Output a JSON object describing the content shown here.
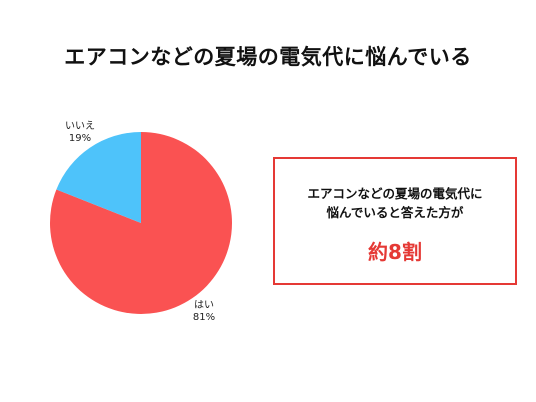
{
  "title": "エアコンなどの夏場の電気代に悩んでいる",
  "chart_data": {
    "type": "pie",
    "slices": [
      {
        "label": "はい",
        "value": 81,
        "percent_text": "81%",
        "color": "#fa5252"
      },
      {
        "label": "いいえ",
        "value": 19,
        "percent_text": "19%",
        "color": "#4ec3fa"
      }
    ]
  },
  "callout": {
    "line1": "エアコンなどの夏場の電気代に",
    "line2": "悩んでいると答えた方が",
    "value": "約8割",
    "border_color": "#e53935",
    "value_color": "#e53935"
  }
}
